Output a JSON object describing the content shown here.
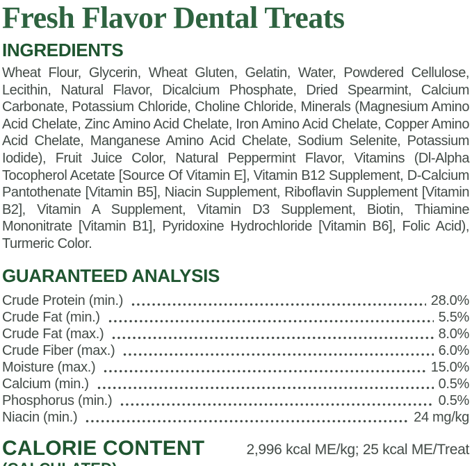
{
  "colors": {
    "title_green": "#2e6340",
    "heading_green": "#1f5530",
    "body_text": "#434b47",
    "background": "#ffffff"
  },
  "title": "Fresh Flavor Dental Treats",
  "ingredients": {
    "heading": "INGREDIENTS",
    "text": "Wheat Flour, Glycerin, Wheat Gluten, Gelatin, Water, Powdered Cellulose, Lecithin, Natural Flavor, Dicalcium Phosphate, Dried Spearmint, Calcium Carbonate, Potassium Chloride, Choline Chloride, Minerals (Magnesium Amino Acid Chelate, Zinc Amino Acid Chelate, Iron Amino Acid Chelate, Copper Amino Acid Chelate, Manganese Amino Acid Chelate, Sodium Selenite, Potassium Iodide), Fruit Juice Color, Natural Peppermint Flavor, Vitamins (Dl-Alpha Tocopherol Acetate [Source Of Vitamin E], Vitamin B12 Supplement, D-Calcium Pantothenate [Vitamin B5], Niacin Supplement, Riboflavin Supplement [Vitamin B2], Vitamin A Supplement, Vitamin D3 Supplement, Biotin, Thiamine Mononitrate [Vitamin B1], Pyridoxine Hydrochloride [Vitamin B6], Folic Acid), Turmeric Color."
  },
  "guaranteed_analysis": {
    "heading": "GUARANTEED ANALYSIS",
    "rows": [
      {
        "label": "Crude Protein (min.)",
        "value": "28.0%"
      },
      {
        "label": "Crude Fat (min.)",
        "value": "5.5%"
      },
      {
        "label": "Crude Fat (max.)",
        "value": "8.0%"
      },
      {
        "label": "Crude Fiber (max.)",
        "value": "6.0%"
      },
      {
        "label": "Moisture (max.)",
        "value": "15.0%"
      },
      {
        "label": "Calcium (min.)",
        "value": "0.5%"
      },
      {
        "label": "Phosphorus (min.)",
        "value": "0.5%"
      },
      {
        "label": "Niacin (min.)",
        "value": "24 mg/kg"
      }
    ]
  },
  "calorie_content": {
    "heading": "CALORIE CONTENT",
    "subheading": "(CALCULATED)",
    "value": "2,996 kcal ME/kg; 25 kcal ME/Treat"
  }
}
